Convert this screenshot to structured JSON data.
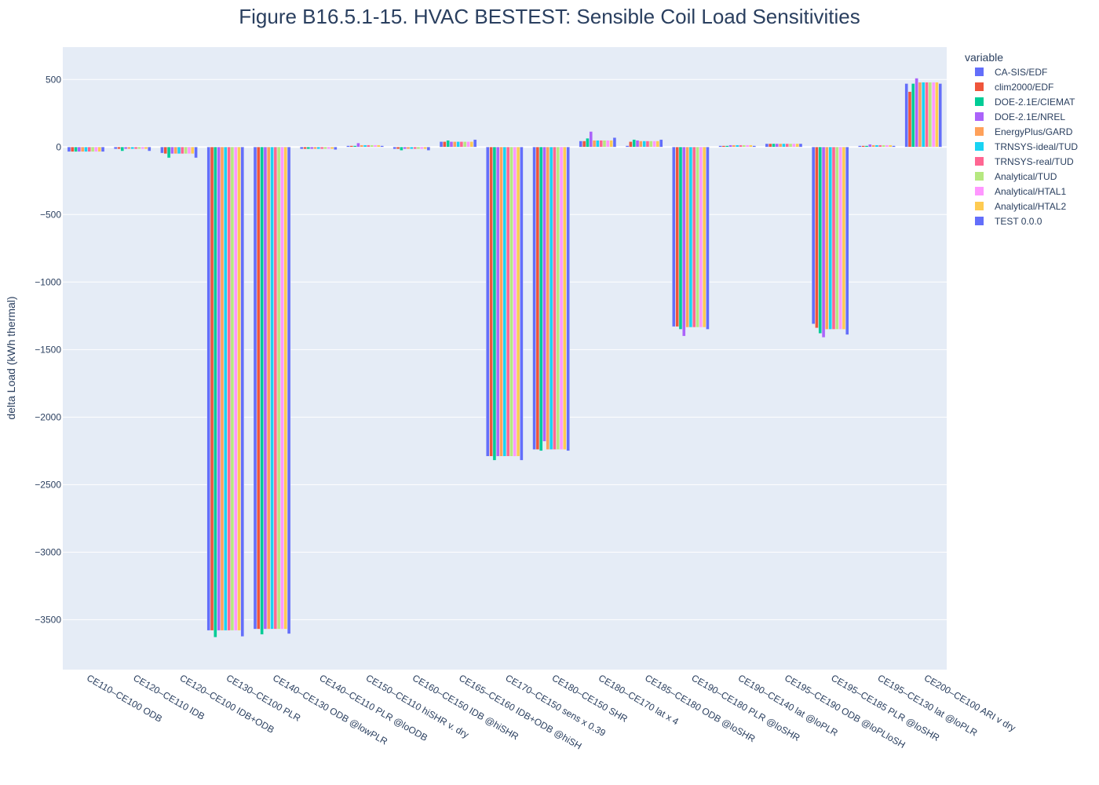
{
  "chart_data": {
    "type": "bar",
    "title": "Figure B16.5.1-15. HVAC BESTEST: Sensible Coil Load Sensitivities",
    "xlabel": "",
    "ylabel": "delta Load  (kWh thermal)",
    "ylim": [
      -3870,
      740
    ],
    "yticks": [
      500,
      0,
      -500,
      -1000,
      -1500,
      -2000,
      -2500,
      -3000,
      -3500
    ],
    "ytick_labels": [
      "500",
      "0",
      "−500",
      "−1000",
      "−1500",
      "−2000",
      "−2500",
      "−3000",
      "−3500"
    ],
    "grid": true,
    "legend": {
      "title": "variable",
      "placement": "right"
    },
    "plot_bg": "#e5ecf6",
    "categories": [
      "CE110–CE100 ODB",
      "CE120–CE110 IDB",
      "CE120–CE100 IDB+ODB",
      "CE130–CE100 PLR",
      "CE140–CE130 ODB @lowPLR",
      "CE140–CE110 PLR @loODB",
      "CE150–CE110 hiSHR v. dry",
      "CE160–CE150 IDB @hiSHR",
      "CE165–CE160 IDB+ODB @hiSH",
      "CE170–CE150 sens x 0.39",
      "CE180–CE150 SHR",
      "CE180–CE170 lat x 4",
      "CE185–CE180 ODB @loSHR",
      "CE190–CE180 PLR @loSHR",
      "CE190–CE140 lat @loPLR",
      "CE195–CE190 ODB @loPLloSH",
      "CE195–CE185 PLR @loSHR",
      "CE195–CE130 lat @loPLR",
      "CE200–CE100 ARI v dry"
    ],
    "series": [
      {
        "name": "CA-SIS/EDF",
        "color": "#636efa",
        "values": [
          -35,
          -15,
          -45,
          -3580,
          -3570,
          -15,
          10,
          -15,
          40,
          -2290,
          -2240,
          45,
          10,
          -1330,
          10,
          25,
          -1310,
          10,
          470
        ]
      },
      {
        "name": "clim2000/EDF",
        "color": "#EF553B",
        "values": [
          -35,
          -15,
          -50,
          -3580,
          -3570,
          -15,
          10,
          -15,
          40,
          -2290,
          -2240,
          45,
          40,
          -1330,
          10,
          25,
          -1340,
          10,
          410
        ]
      },
      {
        "name": "DOE-2.1E/CIEMAT",
        "color": "#00cc96",
        "values": [
          -35,
          -30,
          -80,
          -3630,
          -3610,
          -15,
          10,
          -25,
          50,
          -2320,
          -2250,
          65,
          55,
          -1350,
          10,
          25,
          -1380,
          10,
          470
        ]
      },
      {
        "name": "DOE-2.1E/NREL",
        "color": "#ab63fa",
        "values": [
          -35,
          -15,
          -50,
          -3580,
          -3570,
          -15,
          30,
          -15,
          40,
          -2290,
          -2180,
          115,
          50,
          -1400,
          15,
          25,
          -1410,
          20,
          510
        ]
      },
      {
        "name": "EnergyPlus/GARD",
        "color": "#FFA15A",
        "values": [
          -35,
          -15,
          -50,
          -3580,
          -3570,
          -15,
          15,
          -15,
          40,
          -2290,
          -2240,
          50,
          45,
          -1335,
          15,
          25,
          -1350,
          15,
          480
        ]
      },
      {
        "name": "TRNSYS-ideal/TUD",
        "color": "#19d3f3",
        "values": [
          -35,
          -15,
          -50,
          -3580,
          -3570,
          -15,
          15,
          -15,
          40,
          -2290,
          -2240,
          50,
          45,
          -1335,
          15,
          25,
          -1350,
          15,
          480
        ]
      },
      {
        "name": "TRNSYS-real/TUD",
        "color": "#FF6692",
        "values": [
          -35,
          -15,
          -50,
          -3580,
          -3570,
          -15,
          15,
          -15,
          40,
          -2290,
          -2240,
          50,
          45,
          -1335,
          15,
          25,
          -1350,
          15,
          480
        ]
      },
      {
        "name": "Analytical/TUD",
        "color": "#B6E880",
        "values": [
          -35,
          -15,
          -50,
          -3580,
          -3570,
          -15,
          15,
          -15,
          40,
          -2290,
          -2240,
          50,
          45,
          -1335,
          15,
          25,
          -1350,
          15,
          480
        ]
      },
      {
        "name": "Analytical/HTAL1",
        "color": "#FF97FF",
        "values": [
          -35,
          -15,
          -50,
          -3580,
          -3570,
          -15,
          15,
          -15,
          40,
          -2290,
          -2240,
          50,
          45,
          -1335,
          15,
          25,
          -1350,
          15,
          480
        ]
      },
      {
        "name": "Analytical/HTAL2",
        "color": "#FECB52",
        "values": [
          -35,
          -15,
          -50,
          -3580,
          -3570,
          -15,
          15,
          -15,
          40,
          -2290,
          -2240,
          50,
          45,
          -1335,
          15,
          25,
          -1350,
          15,
          480
        ]
      },
      {
        "name": "TEST 0.0.0",
        "color": "#636efa",
        "values": [
          -35,
          -30,
          -80,
          -3625,
          -3605,
          -20,
          10,
          -25,
          55,
          -2320,
          -2250,
          70,
          55,
          -1350,
          10,
          25,
          -1390,
          10,
          470
        ]
      }
    ]
  }
}
